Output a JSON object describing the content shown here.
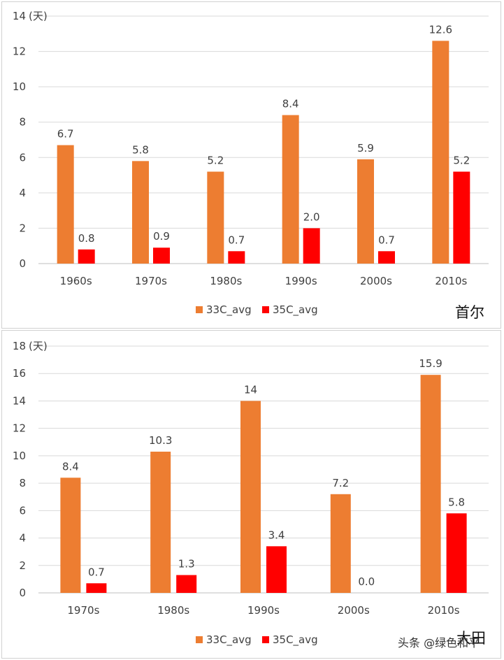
{
  "colors": {
    "s33": "#ED7D31",
    "s35": "#FF0000",
    "grid": "#D9D9D9",
    "axis": "#BFBFBF"
  },
  "watermark": "头条 @绿色和平",
  "chart_data": [
    {
      "type": "bar",
      "title": "首尔",
      "ylabel": "(天)",
      "ylim": [
        0,
        14
      ],
      "ytick_step": 2,
      "grid": true,
      "legend": "bottom",
      "categories": [
        "1960s",
        "1970s",
        "1980s",
        "1990s",
        "2000s",
        "2010s"
      ],
      "series": [
        {
          "name": "33C_avg",
          "values": [
            6.7,
            5.8,
            5.2,
            8.4,
            5.9,
            12.6
          ],
          "labels": [
            "6.7",
            "5.8",
            "5.2",
            "8.4",
            "5.9",
            "12.6"
          ]
        },
        {
          "name": "35C_avg",
          "values": [
            0.8,
            0.9,
            0.7,
            2.0,
            0.7,
            5.2
          ],
          "labels": [
            "0.8",
            "0.9",
            "0.7",
            "2.0",
            "0.7",
            "5.2"
          ]
        }
      ]
    },
    {
      "type": "bar",
      "title": "大田",
      "ylabel": "(天)",
      "ylim": [
        0,
        18
      ],
      "ytick_step": 2,
      "grid": true,
      "legend": "bottom",
      "categories": [
        "1970s",
        "1980s",
        "1990s",
        "2000s",
        "2010s"
      ],
      "series": [
        {
          "name": "33C_avg",
          "values": [
            8.4,
            10.3,
            14,
            7.2,
            15.9
          ],
          "labels": [
            "8.4",
            "10.3",
            "14",
            "7.2",
            "15.9"
          ]
        },
        {
          "name": "35C_avg",
          "values": [
            0.7,
            1.3,
            3.4,
            0.0,
            5.8
          ],
          "labels": [
            "0.7",
            "1.3",
            "3.4",
            "0.0",
            "5.8"
          ]
        }
      ]
    }
  ]
}
